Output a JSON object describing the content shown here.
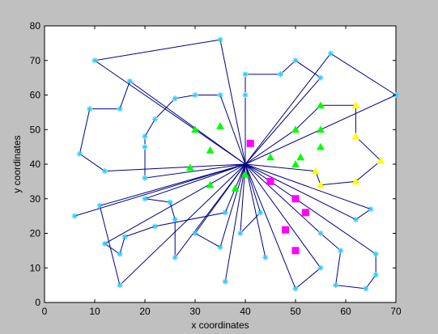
{
  "window": {
    "background": "#c0c0c0"
  },
  "chart_data": {
    "type": "scatter",
    "title": "",
    "xlabel": "x coordinates",
    "ylabel": "y coordinates",
    "xlim": [
      0,
      70
    ],
    "ylim": [
      0,
      80
    ],
    "xticks": [
      0,
      10,
      20,
      30,
      40,
      50,
      60,
      70
    ],
    "yticks": [
      0,
      10,
      20,
      30,
      40,
      50,
      60,
      70,
      80
    ],
    "grid": false,
    "legend": "none",
    "depot": [
      40,
      40
    ],
    "colors": {
      "route_line": "#000080",
      "customer_marker": "#33ccff",
      "green_marker": "#00ff00",
      "magenta_marker": "#ff00ff",
      "yellow_marker": "#ffff00"
    },
    "routes": [
      [
        [
          40,
          40
        ],
        [
          35,
          76
        ],
        [
          10,
          70
        ],
        [
          40,
          40
        ]
      ],
      [
        [
          40,
          40
        ],
        [
          12,
          38
        ],
        [
          7,
          43
        ],
        [
          9,
          56
        ],
        [
          15,
          56
        ],
        [
          17,
          64
        ],
        [
          40,
          40
        ]
      ],
      [
        [
          40,
          40
        ],
        [
          20,
          36
        ],
        [
          20,
          45
        ],
        [
          20,
          48
        ],
        [
          22,
          53
        ],
        [
          26,
          59
        ],
        [
          30,
          60
        ],
        [
          35,
          60
        ],
        [
          40,
          40
        ]
      ],
      [
        [
          40,
          40
        ],
        [
          40,
          60
        ],
        [
          40,
          66
        ],
        [
          47,
          66
        ],
        [
          50,
          70
        ],
        [
          55,
          65
        ],
        [
          40,
          40
        ]
      ],
      [
        [
          40,
          40
        ],
        [
          57,
          72
        ],
        [
          70,
          60
        ],
        [
          40,
          40
        ]
      ],
      [
        [
          40,
          40
        ],
        [
          6,
          25
        ],
        [
          40,
          40
        ]
      ],
      [
        [
          40,
          40
        ],
        [
          11,
          28
        ],
        [
          15,
          5
        ],
        [
          40,
          40
        ]
      ],
      [
        [
          40,
          40
        ],
        [
          20,
          30
        ],
        [
          25,
          29
        ],
        [
          26,
          24
        ],
        [
          26,
          13
        ],
        [
          40,
          40
        ]
      ],
      [
        [
          40,
          40
        ],
        [
          12,
          17
        ],
        [
          15,
          14
        ],
        [
          16,
          19
        ],
        [
          22,
          22
        ],
        [
          36,
          26
        ],
        [
          40,
          40
        ]
      ],
      [
        [
          40,
          40
        ],
        [
          30,
          20
        ],
        [
          35,
          16
        ],
        [
          40,
          40
        ]
      ],
      [
        [
          40,
          40
        ],
        [
          43,
          26
        ],
        [
          39,
          20
        ],
        [
          40,
          40
        ]
      ],
      [
        [
          40,
          40
        ],
        [
          36,
          6
        ],
        [
          40,
          40
        ]
      ],
      [
        [
          40,
          40
        ],
        [
          44,
          13
        ],
        [
          40,
          40
        ]
      ],
      [
        [
          40,
          40
        ],
        [
          50,
          4
        ],
        [
          55,
          10
        ],
        [
          40,
          40
        ]
      ],
      [
        [
          40,
          40
        ],
        [
          55,
          20
        ],
        [
          59,
          15
        ],
        [
          58,
          5
        ],
        [
          64,
          4
        ],
        [
          66,
          8
        ],
        [
          66,
          14
        ],
        [
          40,
          40
        ]
      ],
      [
        [
          40,
          40
        ],
        [
          62,
          24
        ],
        [
          65,
          27
        ],
        [
          40,
          40
        ]
      ]
    ],
    "customers": [
      [
        35,
        76
      ],
      [
        10,
        70
      ],
      [
        12,
        38
      ],
      [
        7,
        43
      ],
      [
        9,
        56
      ],
      [
        15,
        56
      ],
      [
        17,
        64
      ],
      [
        20,
        36
      ],
      [
        20,
        45
      ],
      [
        20,
        48
      ],
      [
        22,
        53
      ],
      [
        26,
        59
      ],
      [
        30,
        60
      ],
      [
        35,
        60
      ],
      [
        40,
        60
      ],
      [
        40,
        66
      ],
      [
        47,
        66
      ],
      [
        50,
        70
      ],
      [
        55,
        65
      ],
      [
        57,
        72
      ],
      [
        70,
        60
      ],
      [
        6,
        25
      ],
      [
        11,
        28
      ],
      [
        15,
        5
      ],
      [
        20,
        30
      ],
      [
        25,
        29
      ],
      [
        26,
        24
      ],
      [
        26,
        13
      ],
      [
        12,
        17
      ],
      [
        15,
        14
      ],
      [
        16,
        19
      ],
      [
        22,
        22
      ],
      [
        36,
        26
      ],
      [
        30,
        20
      ],
      [
        35,
        16
      ],
      [
        43,
        26
      ],
      [
        39,
        20
      ],
      [
        36,
        6
      ],
      [
        44,
        13
      ],
      [
        50,
        4
      ],
      [
        55,
        10
      ],
      [
        55,
        20
      ],
      [
        59,
        15
      ],
      [
        58,
        5
      ],
      [
        64,
        4
      ],
      [
        66,
        8
      ],
      [
        66,
        14
      ],
      [
        62,
        24
      ],
      [
        65,
        27
      ]
    ],
    "green_triangles": [
      [
        30,
        50
      ],
      [
        35,
        51
      ],
      [
        33,
        44
      ],
      [
        29,
        39
      ],
      [
        33,
        34
      ],
      [
        38,
        33
      ],
      [
        40,
        37
      ],
      [
        45,
        42
      ],
      [
        50,
        40
      ],
      [
        51,
        42
      ],
      [
        50,
        50
      ],
      [
        55,
        57
      ],
      [
        55,
        50
      ],
      [
        55,
        45
      ]
    ],
    "magenta_squares": [
      [
        41,
        46
      ],
      [
        45,
        35
      ],
      [
        50,
        30
      ],
      [
        52,
        26
      ],
      [
        48,
        21
      ],
      [
        50,
        15
      ]
    ],
    "yellow_triangles": [
      [
        62,
        57
      ],
      [
        62,
        48
      ],
      [
        67,
        41
      ],
      [
        54,
        38
      ],
      [
        55,
        34
      ],
      [
        62,
        35
      ]
    ],
    "yellow_path": [
      [
        40,
        40
      ],
      [
        54,
        38
      ],
      [
        55,
        34
      ],
      [
        62,
        35
      ],
      [
        67,
        41
      ],
      [
        62,
        48
      ],
      [
        62,
        57
      ],
      [
        55,
        57
      ],
      [
        50,
        50
      ],
      [
        40,
        40
      ]
    ]
  }
}
